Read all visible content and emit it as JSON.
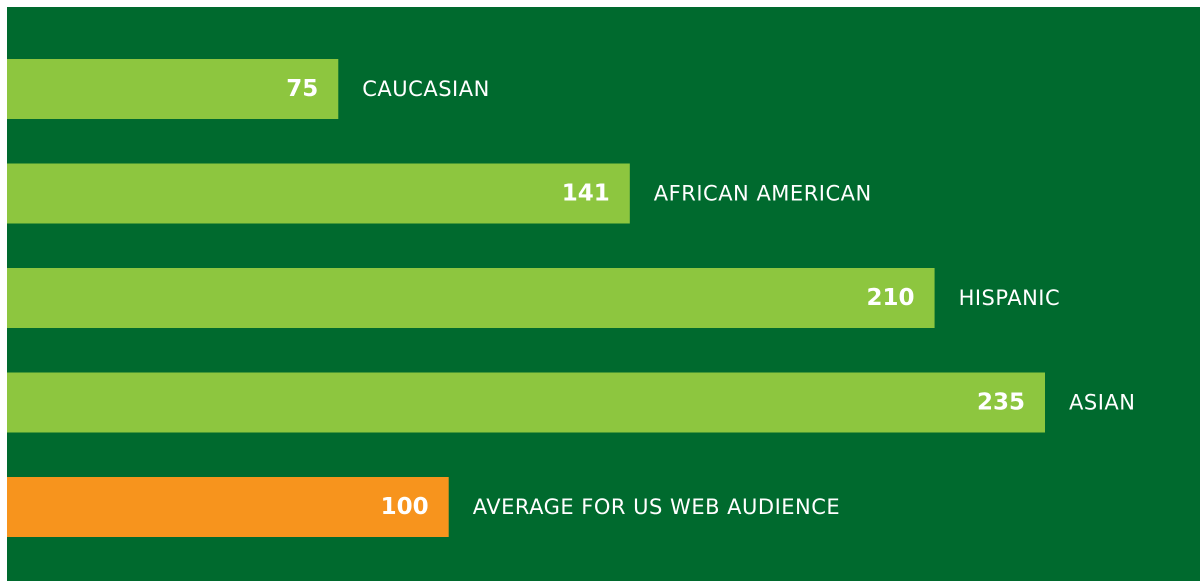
{
  "chart_data": {
    "type": "bar",
    "orientation": "horizontal",
    "categories": [
      "CAUCASIAN",
      "AFRICAN AMERICAN",
      "HISPANIC",
      "ASIAN",
      "AVERAGE FOR US WEB AUDIENCE"
    ],
    "values": [
      75,
      141,
      210,
      235,
      100
    ],
    "colors": [
      "#8dc63f",
      "#8dc63f",
      "#8dc63f",
      "#8dc63f",
      "#f7941d"
    ],
    "background": "#006a2e"
  }
}
